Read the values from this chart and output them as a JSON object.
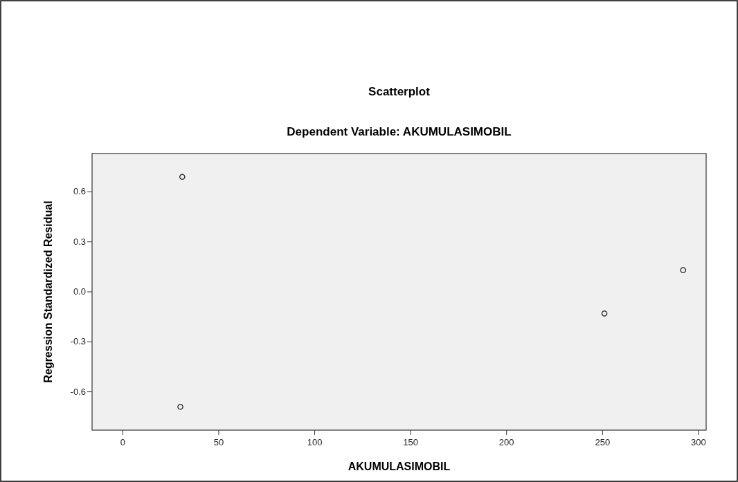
{
  "chart_data": {
    "type": "scatter",
    "title": "Scatterplot",
    "subtitle": "Dependent Variable: AKUMULASIMOBIL",
    "xlabel": "AKUMULASIMOBIL",
    "ylabel": "Regression Standardized Residual",
    "x": [
      31,
      30,
      251,
      292
    ],
    "values": [
      0.69,
      -0.69,
      -0.13,
      0.13
    ],
    "color": "#333333",
    "marker": "circle",
    "xlim": [
      -16,
      304
    ],
    "xticks": [
      0,
      50,
      100,
      150,
      200,
      250,
      300
    ],
    "ylim": [
      -0.83,
      0.83
    ],
    "yticks": [
      {
        "value": -0.6,
        "label": "-0.6"
      },
      {
        "value": -0.3,
        "label": "-0.3"
      },
      {
        "value": 0,
        "label": "0.0"
      },
      {
        "value": 0.3,
        "label": "0.3"
      },
      {
        "value": 0.6,
        "label": "0.6"
      }
    ],
    "grid": false
  }
}
